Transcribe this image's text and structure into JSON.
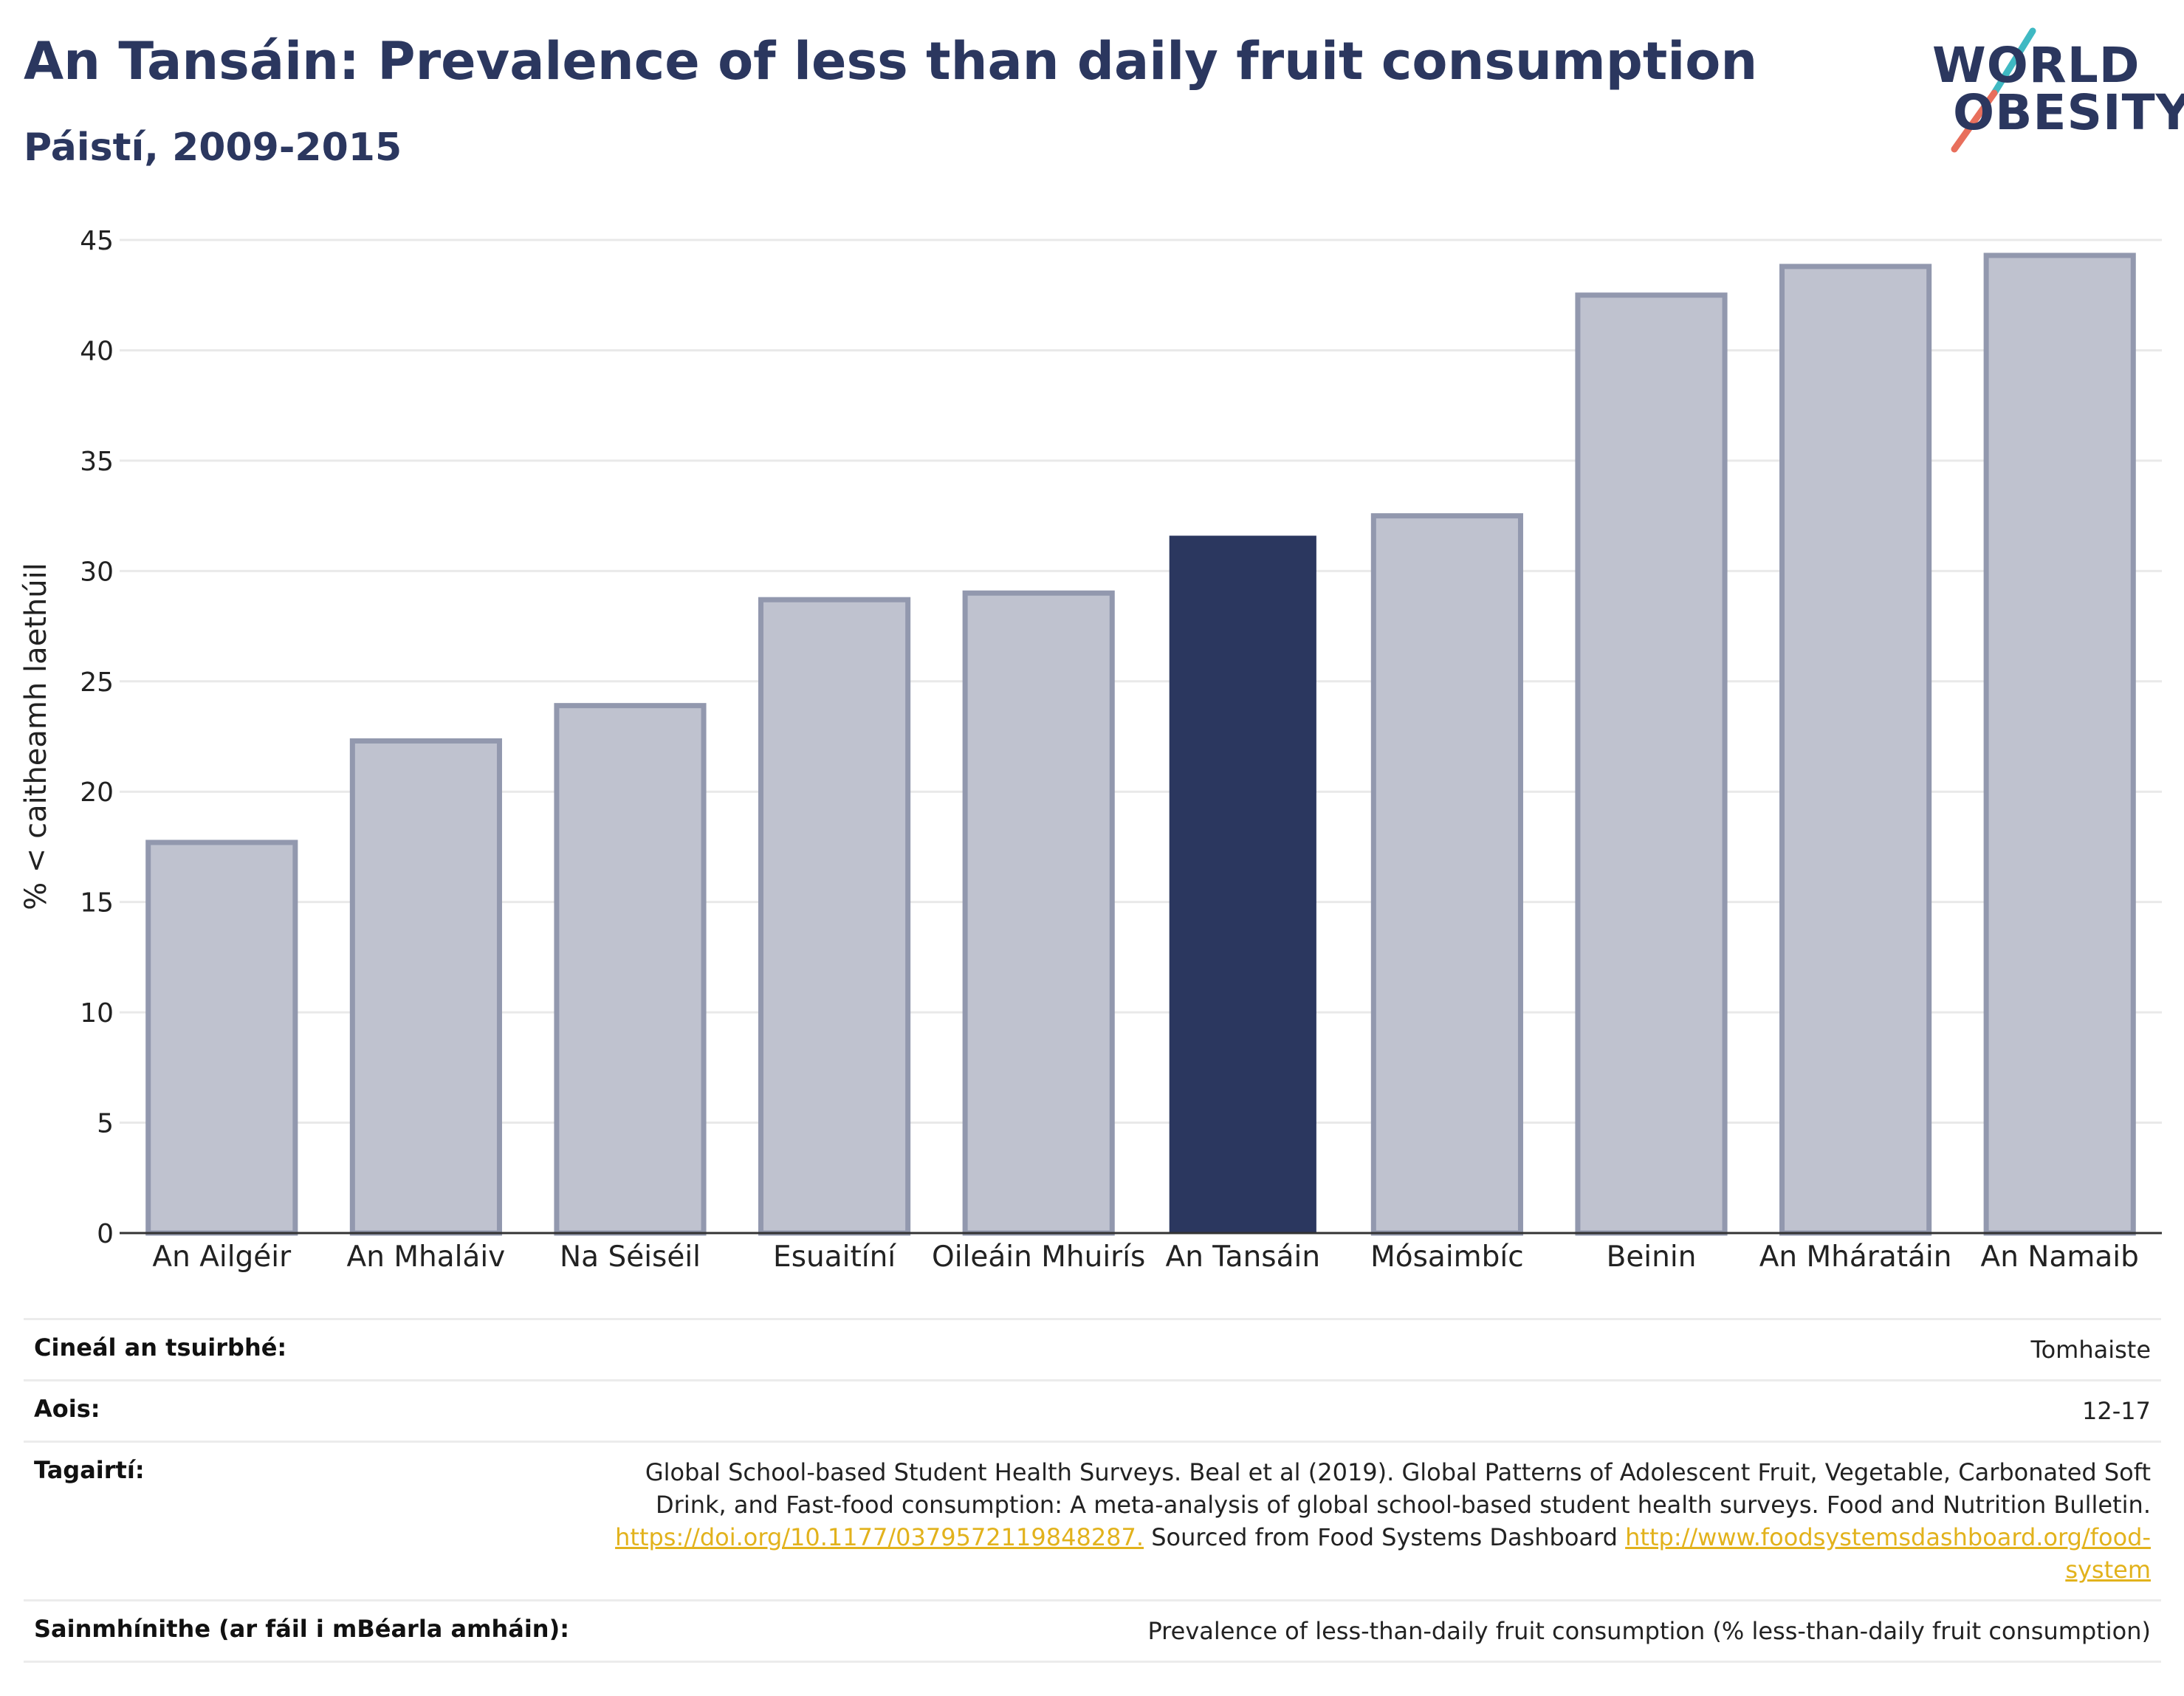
{
  "header": {
    "title": "An Tansáin: Prevalence of less than daily fruit consumption",
    "subtitle": "Páistí, 2009-2015"
  },
  "logo": {
    "line1": "WORLD",
    "line2": "OBESITY"
  },
  "colors": {
    "highlight": "#2b375f",
    "bar_fill": "#bfc2cf",
    "bar_stroke": "#9298ae",
    "grid": "#e9e9e9",
    "logo_teal": "#3fb9c3",
    "logo_coral": "#e86f5c"
  },
  "chart_data": {
    "type": "bar",
    "title": "",
    "xlabel": "",
    "ylabel": "% < caitheamh laethúil",
    "ylim": [
      0,
      45
    ],
    "yticks": [
      0,
      5,
      10,
      15,
      20,
      25,
      30,
      35,
      40,
      45
    ],
    "grid": true,
    "categories": [
      "An Ailgéir",
      "An Mhaláiv",
      "Na Séiséil",
      "Esuaitíní",
      "Oileáin Mhuirís",
      "An Tansáin",
      "Mósaimbíc",
      "Beinin",
      "An Mháratáin",
      "An Namaib"
    ],
    "values": [
      17.7,
      22.3,
      23.9,
      28.7,
      29.0,
      31.6,
      32.5,
      42.5,
      43.8,
      44.3
    ],
    "highlight": "An Tansáin"
  },
  "meta": {
    "survey_type_label": "Cineál an tsuirbhé:",
    "survey_type_value": "Tomhaiste",
    "age_label": "Aois:",
    "age_value": "12-17",
    "refs_label": "Tagairtí:",
    "refs_text_1": "Global School-based Student Health Surveys. Beal et al (2019). Global Patterns of Adolescent Fruit, Vegetable, Carbonated Soft Drink, and Fast-food consumption: A meta-analysis of global school-based student health surveys. Food and Nutrition Bulletin.",
    "refs_link_1": "https://doi.org/10.1177/0379572119848287.",
    "refs_text_2": " Sourced from Food Systems Dashboard ",
    "refs_link_2": "http://www.foodsystemsdashboard.org/food-system",
    "definition_label": "Sainmhínithe (ar fáil i mBéarla amháin):",
    "definition_value": "Prevalence of less-than-daily fruit consumption (% less-than-daily fruit consumption)"
  }
}
